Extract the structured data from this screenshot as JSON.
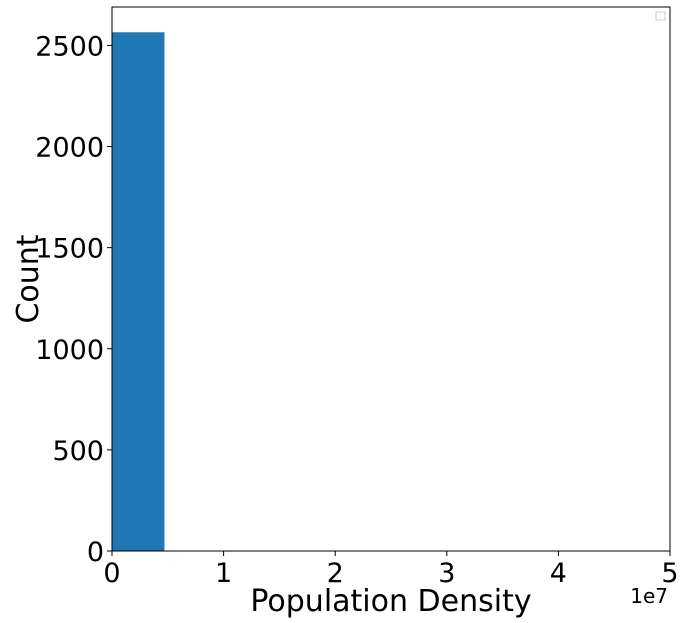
{
  "chart_data": {
    "type": "bar",
    "subtype": "histogram",
    "title": "",
    "xlabel": "Population Density",
    "ylabel": "Count",
    "x_offset_label": "1e7",
    "xlim": [
      0,
      5
    ],
    "ylim": [
      0,
      2690
    ],
    "x_ticks": [
      0,
      1,
      2,
      3,
      4,
      5
    ],
    "y_ticks": [
      0,
      500,
      1000,
      1500,
      2000,
      2500
    ],
    "bins": [
      {
        "start": 0,
        "end": 0.47,
        "count": 2565
      }
    ],
    "bar_color": "#1f77b4",
    "grid": false,
    "legend": {
      "placement": "top-right",
      "entries": []
    }
  }
}
